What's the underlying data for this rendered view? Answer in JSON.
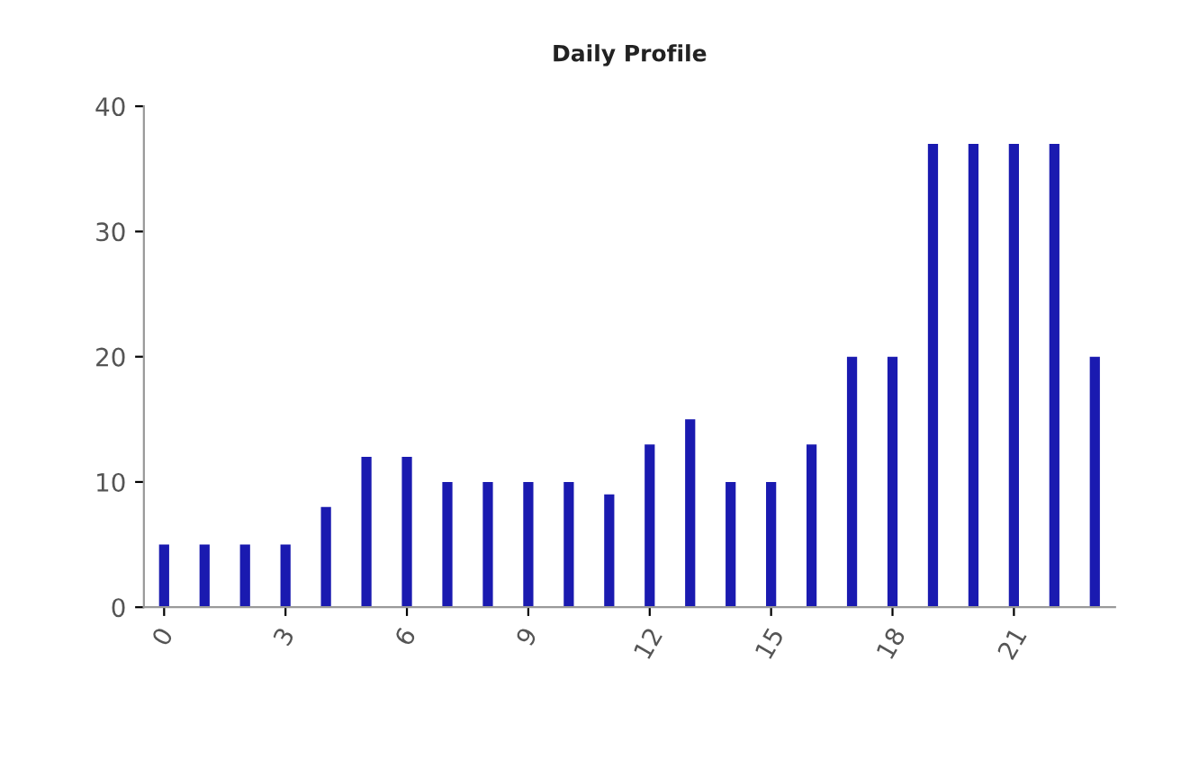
{
  "chart_data": {
    "type": "bar",
    "title": "Daily Profile",
    "x": [
      0,
      1,
      2,
      3,
      4,
      5,
      6,
      7,
      8,
      9,
      10,
      11,
      12,
      13,
      14,
      15,
      16,
      17,
      18,
      19,
      20,
      21,
      22,
      23
    ],
    "values": [
      5,
      5,
      5,
      5,
      8,
      12,
      12,
      10,
      10,
      10,
      10,
      9,
      13,
      15,
      10,
      10,
      13,
      20,
      20,
      37,
      37,
      37,
      37,
      20
    ],
    "color": "#1a1ab0",
    "xlim": [
      -0.5,
      23.5
    ],
    "xticks": [
      0,
      3,
      6,
      9,
      12,
      15,
      18,
      21
    ],
    "ylim": [
      0,
      40
    ],
    "yticks": [
      0,
      10,
      20,
      30,
      40
    ],
    "grid": false,
    "legend": false
  }
}
